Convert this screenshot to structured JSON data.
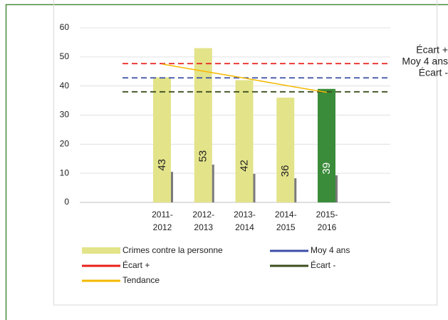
{
  "chart_data": {
    "type": "bar",
    "categories": [
      [
        "2011-",
        "2012"
      ],
      [
        "2012-",
        "2013"
      ],
      [
        "2013-",
        "2014"
      ],
      [
        "2014-",
        "2015"
      ],
      [
        "2015-",
        "2016"
      ]
    ],
    "series": [
      {
        "name": "Crimes contre la personne",
        "values": [
          43,
          53,
          42,
          36,
          39
        ],
        "colors": [
          "#e3e38a",
          "#e3e38a",
          "#e3e38a",
          "#e3e38a",
          "#3a8c3a"
        ],
        "label_colors": [
          "#222222",
          "#222222",
          "#222222",
          "#222222",
          "#ffffff"
        ]
      },
      {
        "values": [
          10.5,
          13,
          9.8,
          8.3,
          9.3
        ],
        "color": "#7a7a7a"
      }
    ],
    "lines": [
      {
        "name": "Moy 4 ans",
        "value": 42.8,
        "color": "#3b4fa8",
        "dashed": true
      },
      {
        "name": "Écart +",
        "value": 47.7,
        "color": "#e8201c",
        "dashed": true
      },
      {
        "name": "Écart -",
        "value": 38,
        "color": "#3d4f1e",
        "dashed": true
      }
    ],
    "trend": {
      "name": "Tendance",
      "values": [
        47.5,
        45.1,
        42.7,
        40.2,
        37.8
      ],
      "color": "#f5b800"
    },
    "annotations": [
      "Écart +",
      "Moy 4 ans",
      "Écart -"
    ],
    "ylim": [
      0,
      60
    ],
    "yticks": [
      0,
      10,
      20,
      30,
      40,
      50,
      60
    ],
    "grid": true
  }
}
